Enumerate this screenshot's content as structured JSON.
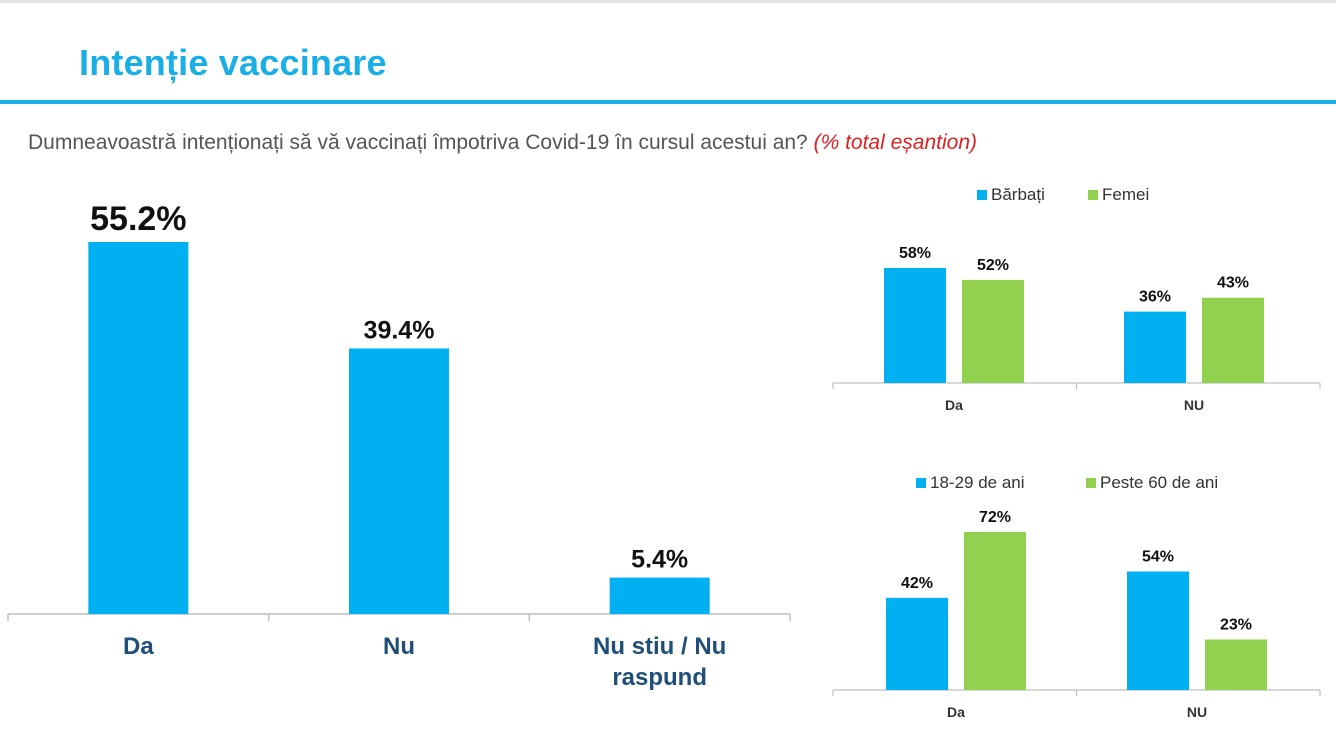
{
  "title": "Intenție vaccinare",
  "question": {
    "text": "Dumneavoastră intenționați să vă vaccinați împotriva Covid-19 în cursul acestui an?",
    "note": "(% total eșantion)"
  },
  "colors": {
    "accent": "#19aee6",
    "bar_primary": "#00b0f0",
    "bar_secondary": "#92d050",
    "note": "#e02020",
    "category_text": "#1f4e79"
  },
  "chart_data": [
    {
      "type": "bar",
      "title": "",
      "categories": [
        "Da",
        "Nu",
        "Nu stiu / Nu raspund"
      ],
      "category_lines": [
        [
          "Da"
        ],
        [
          "Nu"
        ],
        [
          "Nu stiu / Nu",
          "raspund"
        ]
      ],
      "values": [
        55.2,
        39.4,
        5.4
      ],
      "value_labels": [
        "55.2%",
        "39.4%",
        "5.4%"
      ],
      "ylim": [
        0,
        60
      ],
      "grid": false,
      "legend": "none"
    },
    {
      "type": "bar",
      "title": "",
      "categories": [
        "Da",
        "NU"
      ],
      "series": [
        {
          "name": "Bărbați",
          "values": [
            58,
            36
          ],
          "labels": [
            "58%",
            "36%"
          ]
        },
        {
          "name": "Femei",
          "values": [
            52,
            43
          ],
          "labels": [
            "52%",
            "43%"
          ]
        }
      ],
      "ylim": [
        0,
        65
      ],
      "grid": false,
      "legend": "top"
    },
    {
      "type": "bar",
      "title": "",
      "categories": [
        "Da",
        "NU"
      ],
      "series": [
        {
          "name": "18-29 de ani",
          "values": [
            42,
            54
          ],
          "labels": [
            "42%",
            "54%"
          ]
        },
        {
          "name": "Peste 60 de ani",
          "values": [
            72,
            23
          ],
          "labels": [
            "72%",
            "23%"
          ]
        }
      ],
      "ylim": [
        0,
        80
      ],
      "grid": false,
      "legend": "top"
    }
  ]
}
